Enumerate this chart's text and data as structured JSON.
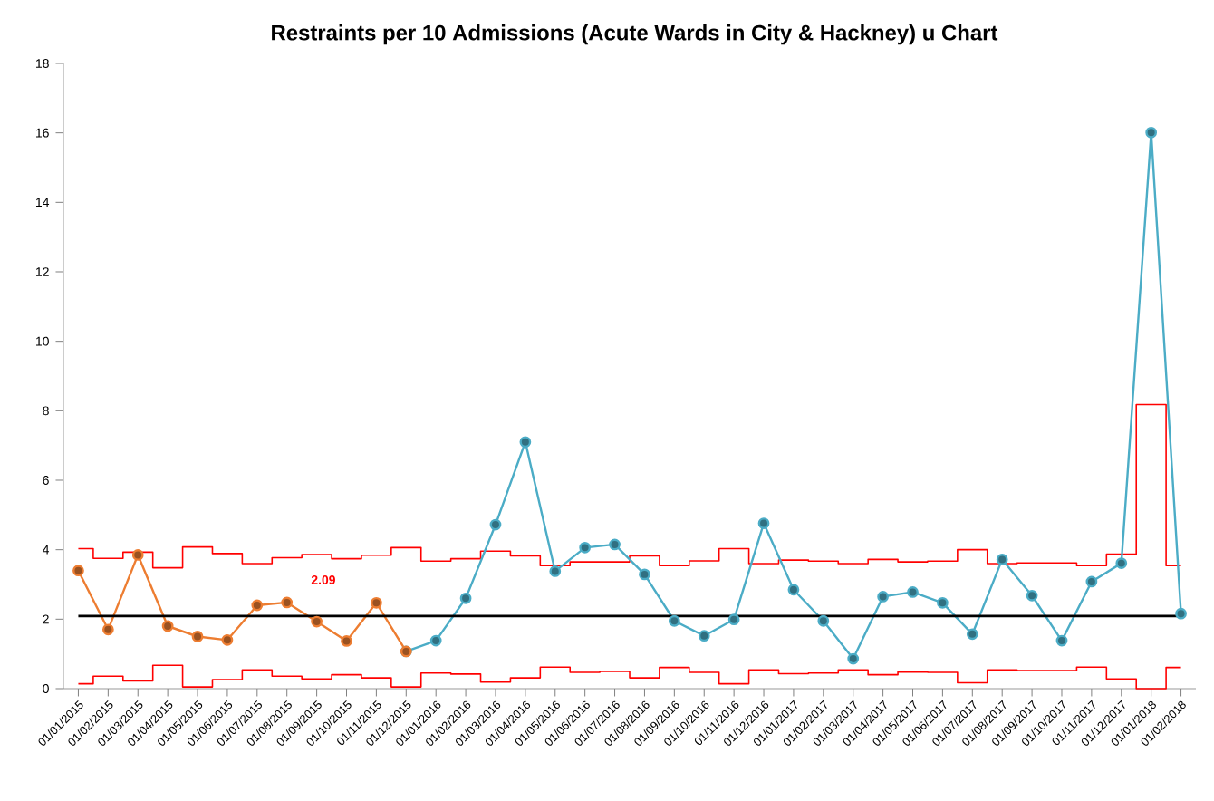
{
  "chart_data": {
    "type": "line",
    "title": "Restraints per 10 Admissions (Acute Wards in City & Hackney) u Chart",
    "categories": [
      "01/01/2015",
      "01/02/2015",
      "01/03/2015",
      "01/04/2015",
      "01/05/2015",
      "01/06/2015",
      "01/07/2015",
      "01/08/2015",
      "01/09/2015",
      "01/10/2015",
      "01/11/2015",
      "01/12/2015",
      "01/01/2016",
      "01/02/2016",
      "01/03/2016",
      "01/04/2016",
      "01/05/2016",
      "01/06/2016",
      "01/07/2016",
      "01/08/2016",
      "01/09/2016",
      "01/10/2016",
      "01/11/2016",
      "01/12/2016",
      "01/01/2017",
      "01/02/2017",
      "01/03/2017",
      "01/04/2017",
      "01/05/2017",
      "01/06/2017",
      "01/07/2017",
      "01/08/2017",
      "01/09/2017",
      "01/10/2017",
      "01/11/2017",
      "01/12/2017",
      "01/01/2018",
      "01/02/2018"
    ],
    "series": [
      {
        "type": "step",
        "color": "#ff0000",
        "marker": "none",
        "values": [
          4.03,
          3.75,
          3.93,
          3.48,
          4.08,
          3.89,
          3.6,
          3.77,
          3.86,
          3.74,
          3.84,
          4.06,
          3.67,
          3.74,
          3.96,
          3.82,
          3.54,
          3.65,
          3.65,
          3.82,
          3.54,
          3.68,
          4.03,
          3.6,
          3.7,
          3.67,
          3.6,
          3.72,
          3.65,
          3.67,
          4.0,
          3.6,
          3.62,
          3.62,
          3.54,
          3.87,
          8.18,
          3.54
        ]
      },
      {
        "type": "step",
        "color": "#ff0000",
        "marker": "none",
        "values": [
          0.14,
          0.36,
          0.22,
          0.67,
          0.05,
          0.26,
          0.54,
          0.36,
          0.28,
          0.4,
          0.31,
          0.05,
          0.45,
          0.42,
          0.19,
          0.31,
          0.62,
          0.47,
          0.5,
          0.31,
          0.61,
          0.47,
          0.14,
          0.54,
          0.43,
          0.45,
          0.54,
          0.4,
          0.48,
          0.47,
          0.17,
          0.54,
          0.52,
          0.52,
          0.62,
          0.28,
          0,
          0.61
        ]
      },
      {
        "color": "#4bacc6",
        "values": [
          null,
          null,
          null,
          null,
          null,
          null,
          null,
          null,
          null,
          null,
          null,
          1.07,
          1.38,
          2.6,
          4.72,
          7.1,
          3.38,
          4.06,
          4.15,
          3.29,
          1.95,
          1.52,
          1.99,
          4.76,
          2.85,
          1.95,
          0.86,
          2.65,
          2.78,
          2.47,
          1.57,
          3.72,
          2.68,
          1.38,
          3.08,
          3.61,
          16.01,
          2.16
        ]
      },
      {
        "color": "#ed7d31",
        "values": [
          3.4,
          1.7,
          3.85,
          1.8,
          1.5,
          1.4,
          2.4,
          2.48,
          1.93,
          1.37,
          2.47,
          1.07,
          null,
          null,
          null,
          null,
          null,
          null,
          null,
          null,
          null,
          null,
          null,
          null,
          null,
          null,
          null,
          null,
          null,
          null,
          null,
          null,
          null,
          null,
          null,
          null,
          null,
          null
        ]
      }
    ],
    "ref_lines": [
      {
        "axis": "y",
        "value": 2.09,
        "label": "2.09",
        "color": "#000000"
      }
    ],
    "ylim": [
      0,
      18
    ],
    "yticks": [
      0,
      2,
      4,
      6,
      8,
      10,
      12,
      14,
      16,
      18
    ],
    "marker": "circle"
  }
}
